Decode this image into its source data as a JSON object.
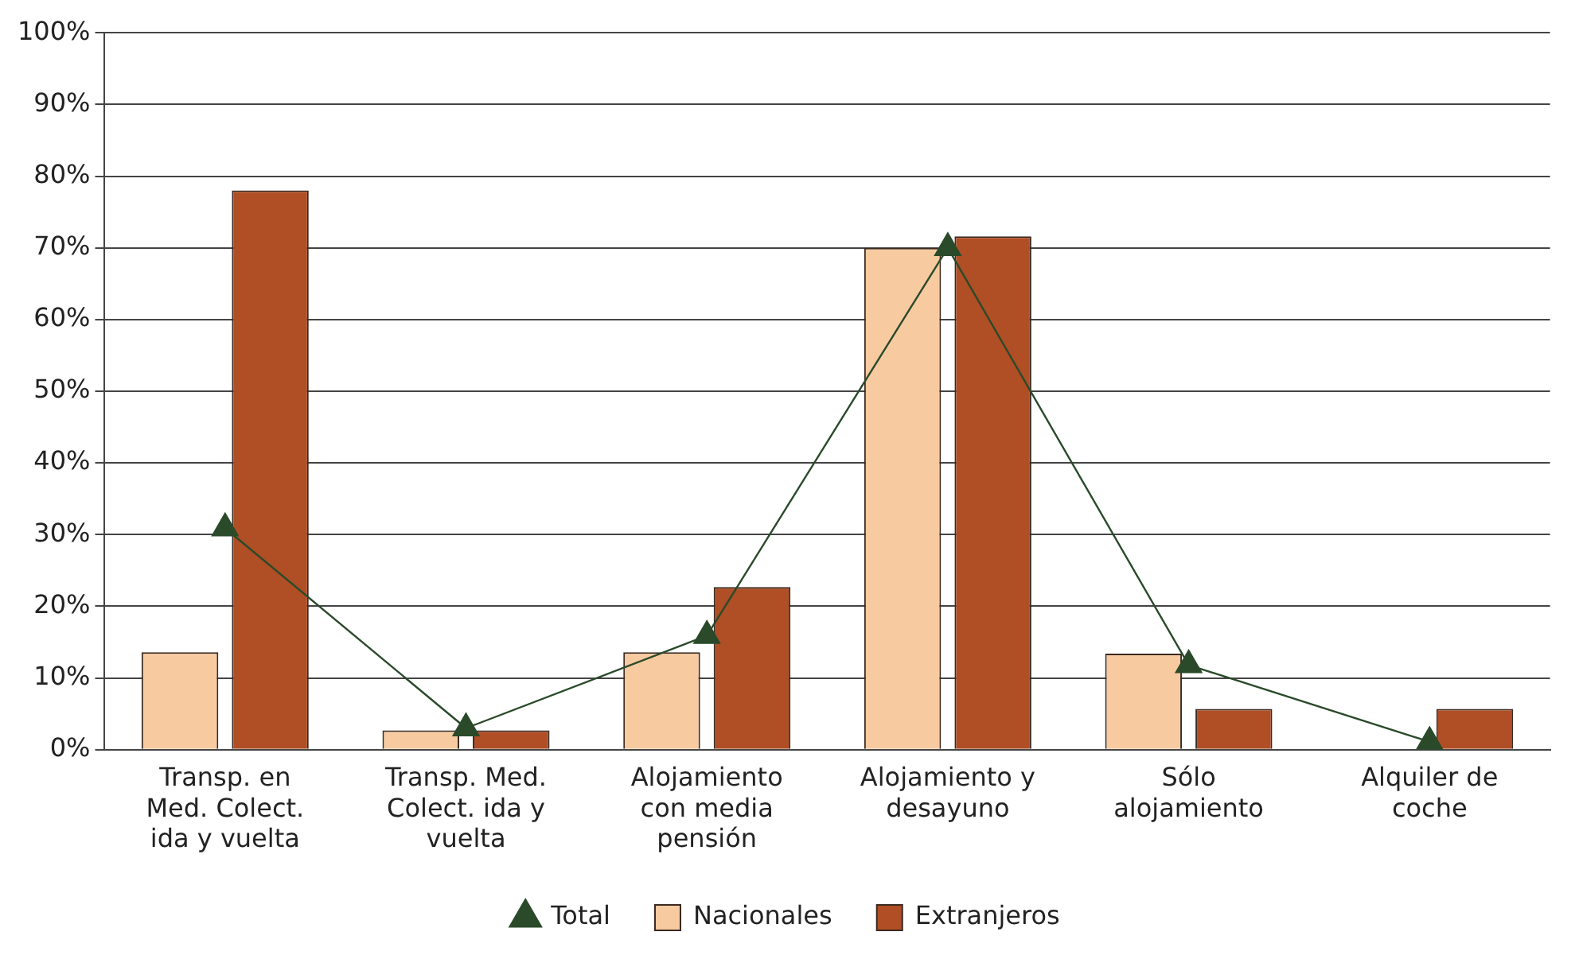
{
  "chart_data": {
    "type": "bar",
    "categories": [
      "Transp. en Med. Colect. ida y vuelta",
      "Transp. Med. Colect. ida y vuelta",
      "Alojamiento con media pensión",
      "Alojamiento y desayuno",
      "Sólo alojamiento",
      "Alquiler de coche"
    ],
    "series": [
      {
        "name": "Nacionales",
        "color": "#f7caa0",
        "values": [
          13.6,
          2.7,
          13.6,
          70,
          13.4,
          0
        ]
      },
      {
        "name": "Extranjeros",
        "color": "#b04e25",
        "values": [
          78,
          2.7,
          22.7,
          71.6,
          5.7,
          5.7
        ]
      },
      {
        "name": "Total",
        "type": "line",
        "color": "#2a4a2a",
        "marker": "triangle",
        "values": [
          30.9,
          3,
          15.9,
          70,
          11.8,
          1.1
        ]
      }
    ],
    "ylim": [
      0,
      100
    ],
    "yticks": [
      {
        "value": 0,
        "label": "0%"
      },
      {
        "value": 10,
        "label": "10%"
      },
      {
        "value": 20,
        "label": "20%"
      },
      {
        "value": 30,
        "label": "30%"
      },
      {
        "value": 40,
        "label": "40%"
      },
      {
        "value": 50,
        "label": "50%"
      },
      {
        "value": 60,
        "label": "60%"
      },
      {
        "value": 70,
        "label": "70%"
      },
      {
        "value": 80,
        "label": "80%"
      },
      {
        "value": 90,
        "label": "90%"
      },
      {
        "value": 100,
        "label": "100%"
      }
    ],
    "grid": "y",
    "legend": "bottom"
  }
}
